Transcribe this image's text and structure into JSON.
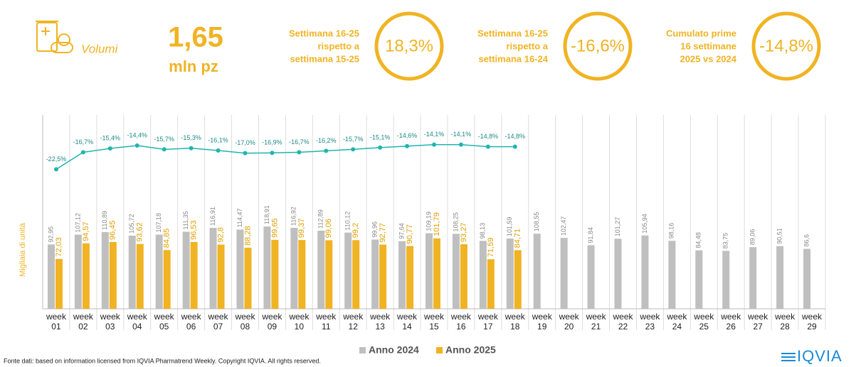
{
  "header": {
    "label": "Volumi",
    "value": "1,65",
    "unit": "mln pz"
  },
  "kpis": [
    {
      "lines": [
        "Settimana 16-25",
        "rispetto a",
        "settimana 15-25"
      ],
      "value": "18,3%"
    },
    {
      "lines": [
        "Settimana 16-25",
        "rispetto a",
        "settimana 16-24"
      ],
      "value": "-16,6%"
    },
    {
      "lines": [
        "Cumulato prime",
        "16 settimane",
        "2025 vs 2024"
      ],
      "value": "-14,8%"
    }
  ],
  "chart_data": {
    "type": "bar",
    "y_label": "Migliaia di unità",
    "categories": [
      "week 01",
      "week 02",
      "week 03",
      "week 04",
      "week 05",
      "week 06",
      "week 07",
      "week 08",
      "week 09",
      "week 10",
      "week 11",
      "week 12",
      "week 13",
      "week 14",
      "week 15",
      "week 16",
      "week 17",
      "week 18",
      "week 19",
      "week 20",
      "week 21",
      "week 22",
      "week 23",
      "week 24",
      "week 25",
      "week 26",
      "week 27",
      "week 28",
      "week 29"
    ],
    "ylim": [
      0,
      280
    ],
    "y2lim": [
      -70,
      -4
    ],
    "legend": "bottom",
    "series": [
      {
        "name": "Anno 2024",
        "color": "#bfbfbf",
        "values": [
          92.95,
          107.12,
          110.89,
          105.72,
          107.18,
          111.35,
          116.91,
          114.47,
          118.91,
          116.92,
          112.89,
          110.12,
          99.96,
          97.64,
          109.19,
          108.25,
          98.13,
          101.59,
          108.55,
          102.47,
          91.84,
          101.27,
          105.94,
          98.16,
          84.48,
          83.75,
          89.06,
          90.51,
          86.6
        ],
        "value_labels": [
          "92,95",
          "107,12",
          "110,89",
          "105,72",
          "107,18",
          "111,35",
          "116,91",
          "114,47",
          "118,91",
          "116,92",
          "112,89",
          "110,12",
          "99,96",
          "97,64",
          "109,19",
          "108,25",
          "98,13",
          "101,59",
          "108,55",
          "102,47",
          "91,84",
          "101,27",
          "105,94",
          "98,16",
          "84,48",
          "83,75",
          "89,06",
          "90,51",
          "86,6"
        ]
      },
      {
        "name": "Anno 2025",
        "color": "#f0b323",
        "values": [
          72.03,
          94.57,
          96.45,
          93.62,
          84.85,
          96.53,
          92.8,
          88.28,
          99.65,
          99.37,
          99.06,
          99.2,
          92.77,
          90.77,
          101.79,
          93.27,
          71.59,
          84.71,
          null,
          null,
          null,
          null,
          null,
          null,
          null,
          null,
          null,
          null,
          null
        ],
        "value_labels": [
          "72,03",
          "94,57",
          "96,45",
          "93,62",
          "84,85",
          "96,53",
          "92,8",
          "88,28",
          "99,65",
          "99,37",
          "99,06",
          "99,2",
          "92,77",
          "90,77",
          "101,79",
          "93,27",
          "71,59",
          "84,71",
          null,
          null,
          null,
          null,
          null,
          null,
          null,
          null,
          null,
          null,
          null
        ]
      },
      {
        "type": "line",
        "axis": "y2",
        "color": "#1fb5ad",
        "values": [
          -22.5,
          -16.7,
          -15.4,
          -14.4,
          -15.7,
          -15.3,
          -16.1,
          -17.0,
          -16.9,
          -16.7,
          -16.2,
          -15.7,
          -15.1,
          -14.6,
          -14.1,
          -14.1,
          -14.8,
          -14.8,
          null,
          null,
          null,
          null,
          null,
          null,
          null,
          null,
          null,
          null,
          null
        ],
        "value_labels": [
          "-22,5%",
          "-16,7%",
          "-15,4%",
          "-14,4%",
          "-15,7%",
          "-15,3%",
          "-16,1%",
          "-17,0%",
          "-16,9%",
          "-16,7%",
          "-16,2%",
          "-15,7%",
          "-15,1%",
          "-14,6%",
          "-14,1%",
          "-14,1%",
          "-14,8%",
          "-14,8%",
          null,
          null,
          null,
          null,
          null,
          null,
          null,
          null,
          null,
          null,
          null
        ]
      }
    ]
  },
  "footer": {
    "source": "Fonte dati: based on information licensed from IQVIA Pharmatrend Weekly. Copyright IQVIA. All rights reserved.",
    "logo": "IQVIA"
  }
}
